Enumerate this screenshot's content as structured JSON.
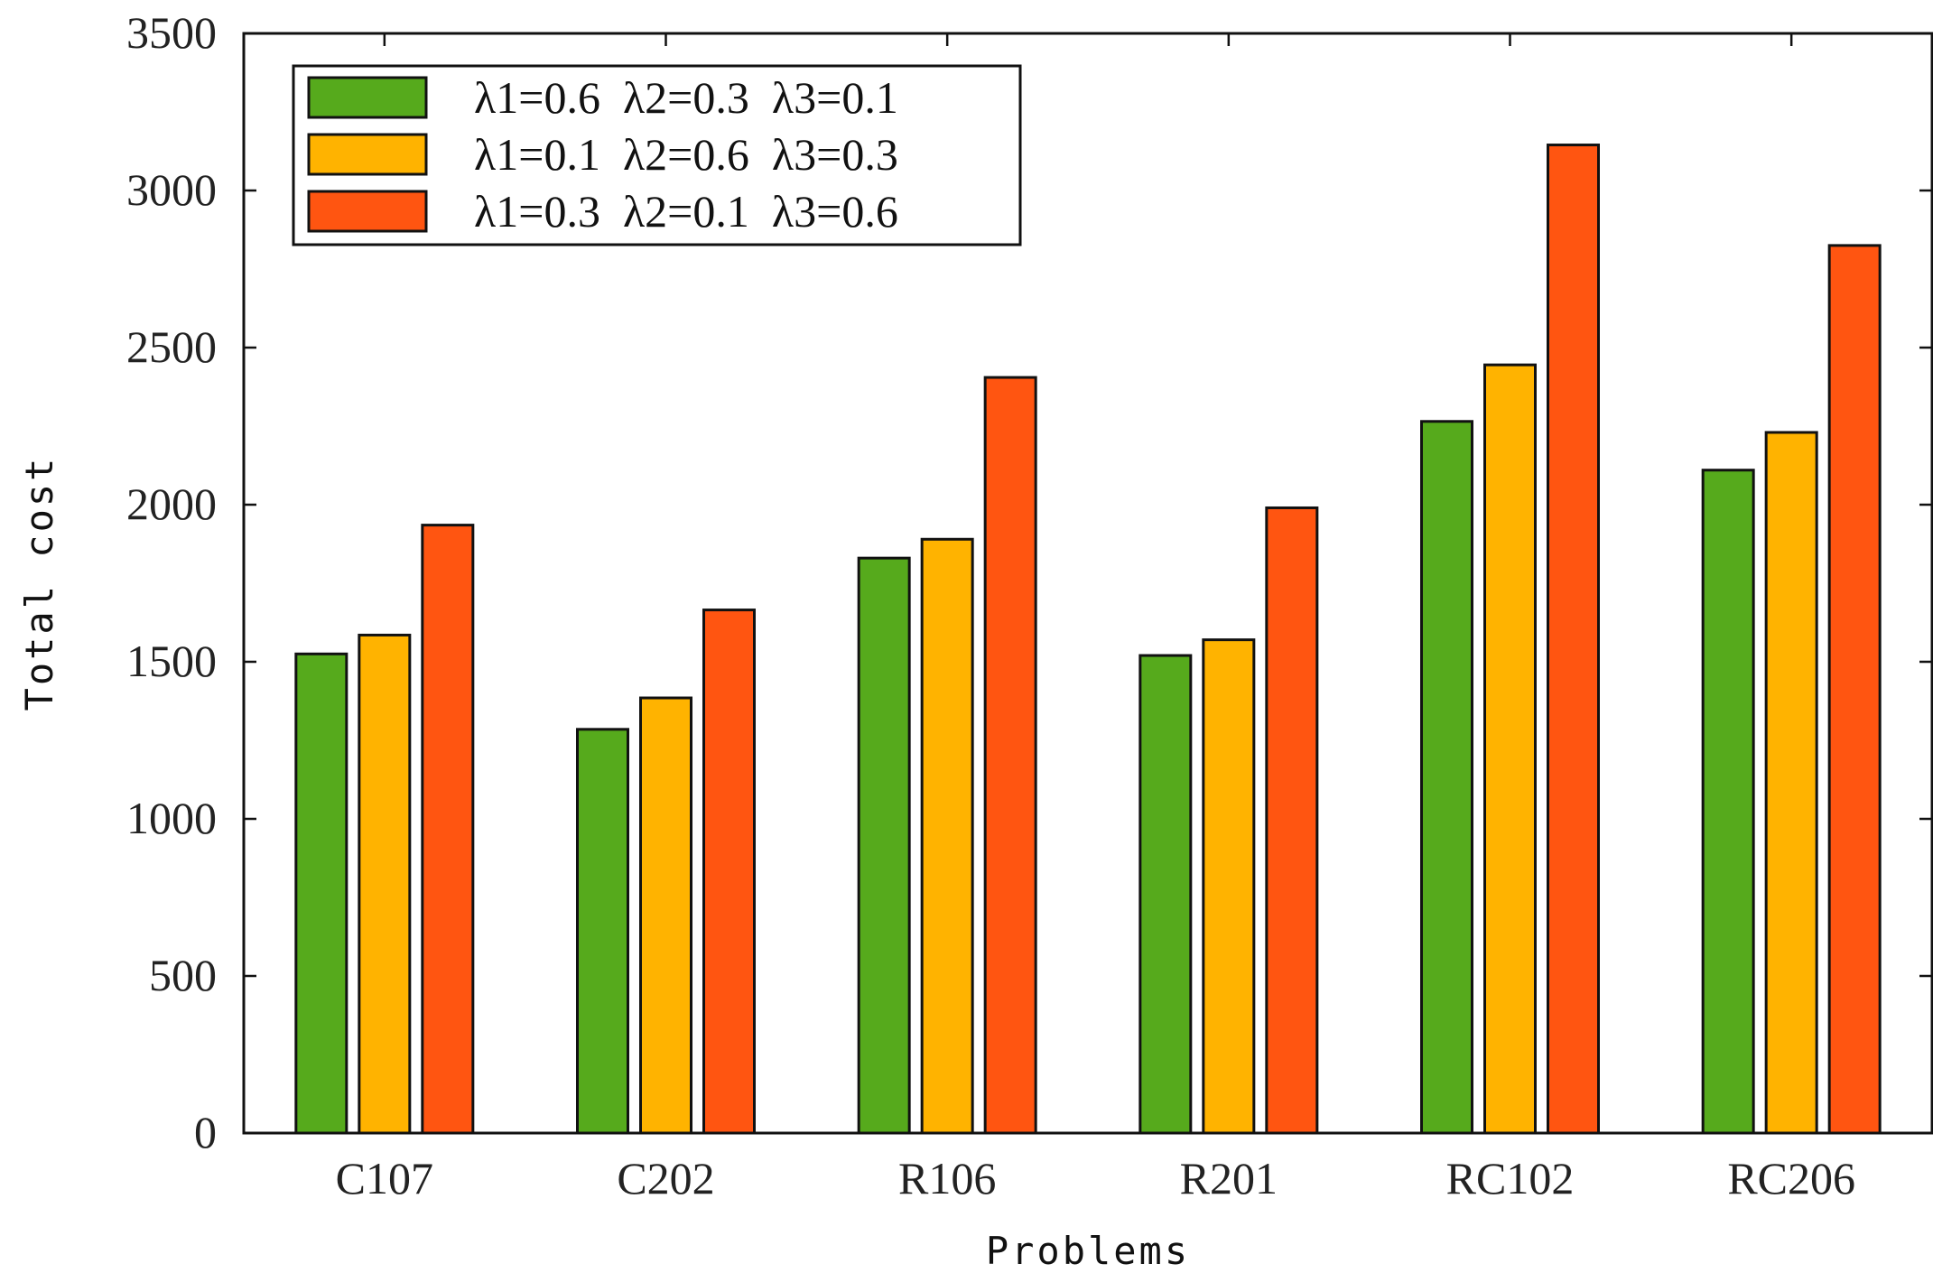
{
  "chart_data": {
    "type": "bar",
    "title": "",
    "xlabel": "Problems",
    "ylabel": "Total cost",
    "categories": [
      "C107",
      "C202",
      "R106",
      "R201",
      "RC102",
      "RC206"
    ],
    "series": [
      {
        "name": "λ1=0.6  λ2=0.3  λ3=0.1",
        "color": "#56aa1c",
        "values": [
          1525,
          1285,
          1830,
          1520,
          2265,
          2110
        ]
      },
      {
        "name": "λ1=0.1  λ2=0.6  λ3=0.3",
        "color": "#ffb300",
        "values": [
          1585,
          1385,
          1890,
          1570,
          2445,
          2230
        ]
      },
      {
        "name": "λ1=0.3  λ2=0.1  λ3=0.6",
        "color": "#ff5511",
        "values": [
          1935,
          1665,
          2405,
          1990,
          3145,
          2825
        ]
      }
    ],
    "ylim": [
      0,
      3500
    ],
    "yticks": [
      0,
      500,
      1000,
      1500,
      2000,
      2500,
      3000,
      3500
    ],
    "legend_position": "top-left",
    "grid": false
  }
}
